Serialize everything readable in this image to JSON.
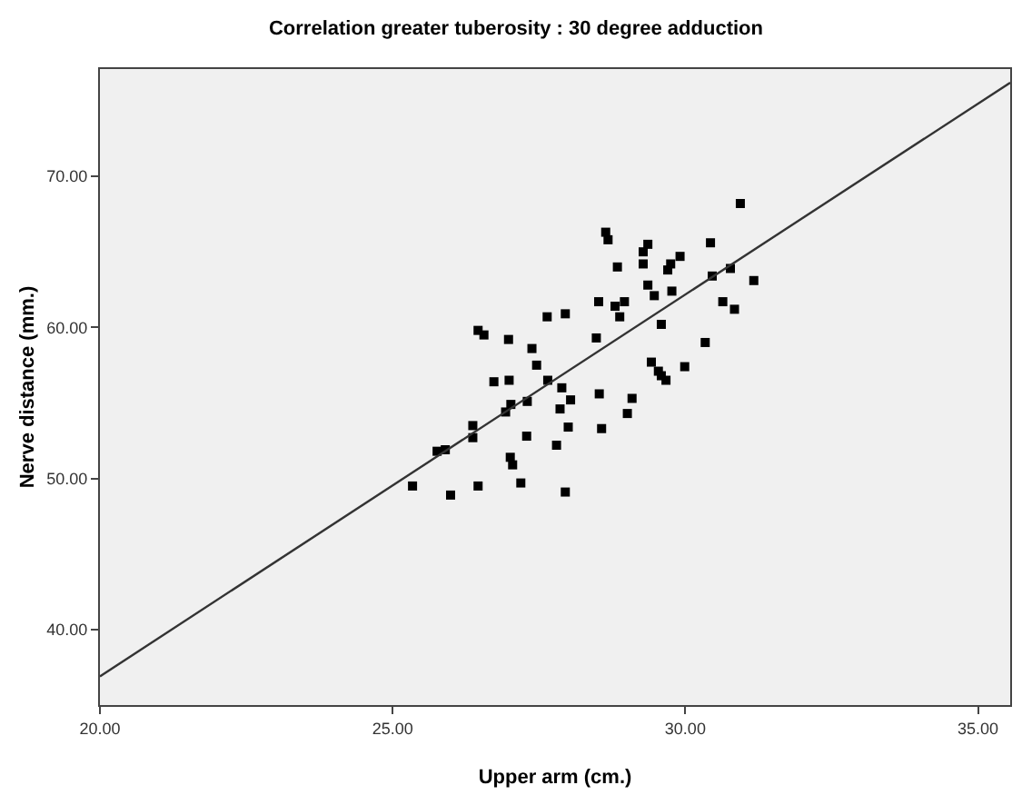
{
  "chart_data": {
    "type": "scatter",
    "title": "Correlation greater tuberosity : 30 degree adduction",
    "xlabel": "Upper arm (cm.)",
    "ylabel": "Nerve distance (mm.)",
    "xlim": [
      20,
      35.55
    ],
    "ylim": [
      35,
      77.1
    ],
    "xticks": [
      {
        "value": 20,
        "label": "20.00"
      },
      {
        "value": 25,
        "label": "25.00"
      },
      {
        "value": 30,
        "label": "30.00"
      },
      {
        "value": 35,
        "label": "35.00"
      }
    ],
    "yticks": [
      {
        "value": 40,
        "label": "40.00"
      },
      {
        "value": 50,
        "label": "50.00"
      },
      {
        "value": 60,
        "label": "60.00"
      },
      {
        "value": 70,
        "label": "70.00"
      }
    ],
    "grid": false,
    "marker": "square",
    "series": [
      {
        "color": "#000000",
        "x": [
          28.64,
          28.68,
          30.94,
          29.36,
          29.28,
          30.43,
          29.91,
          28.84,
          29.28,
          29.75,
          29.7,
          30.77,
          30.46,
          31.17,
          29.36,
          29.77,
          29.47,
          28.52,
          28.96,
          28.8,
          28.88,
          30.64,
          30.84,
          27.64,
          27.95,
          29.59,
          26.46,
          26.56,
          28.48,
          30.34,
          26.98,
          27.38,
          27.46,
          29.42,
          29.54,
          29.59,
          29.67,
          29.99,
          26.73,
          26.99,
          27.65,
          27.89,
          28.04,
          27.3,
          27.02,
          26.93,
          27.86,
          28.53,
          29.09,
          29.01,
          26.37,
          26.37,
          28.0,
          28.57,
          27.29,
          27.8,
          25.76,
          25.9,
          27.01,
          27.05,
          25.34,
          25.99,
          26.46,
          27.19,
          27.95
        ],
        "values": [
          66.3,
          65.8,
          68.2,
          65.5,
          65.0,
          65.6,
          64.7,
          64.0,
          64.2,
          64.2,
          63.8,
          63.9,
          63.4,
          63.1,
          62.8,
          62.4,
          62.1,
          61.7,
          61.7,
          61.4,
          60.7,
          61.7,
          61.2,
          60.7,
          60.9,
          60.2,
          59.8,
          59.5,
          59.3,
          59.0,
          59.2,
          58.6,
          57.5,
          57.7,
          57.1,
          56.8,
          56.5,
          57.4,
          56.4,
          56.5,
          56.5,
          56.0,
          55.2,
          55.1,
          54.9,
          54.4,
          54.6,
          55.6,
          55.3,
          54.3,
          53.5,
          52.7,
          53.4,
          53.3,
          52.8,
          52.2,
          51.8,
          51.9,
          51.4,
          50.9,
          49.5,
          48.9,
          49.5,
          49.7,
          49.1
        ]
      },
      {
        "type": "line",
        "color": "#333333",
        "x": [
          20,
          35.55
        ],
        "values": [
          36.9,
          76.2
        ],
        "marker": "none",
        "line_style": "solid"
      }
    ]
  }
}
